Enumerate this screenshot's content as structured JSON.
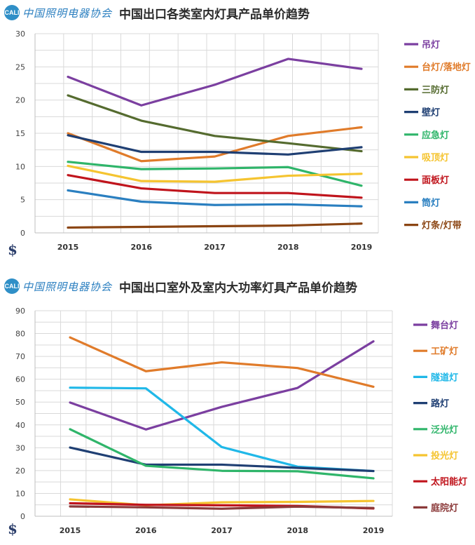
{
  "logo": {
    "badge": "CALI",
    "text": "中国照明电器协会"
  },
  "currency_symbol": "$",
  "chart_data": [
    {
      "type": "line",
      "title": "中国出口各类室内灯具产品单价趋势",
      "x": [
        "2015",
        "2016",
        "2017",
        "2018",
        "2019"
      ],
      "yticks": [
        0,
        5,
        10,
        15,
        20,
        25,
        30
      ],
      "ylim": [
        0,
        30
      ],
      "grid": true,
      "legend_position": "right",
      "series": [
        {
          "name": "吊灯",
          "color": "#7b3fa0",
          "values": [
            23.5,
            19.2,
            22.3,
            26.2,
            24.7
          ]
        },
        {
          "name": "台灯/落地灯",
          "color": "#e07b2a",
          "values": [
            15.0,
            10.8,
            11.5,
            14.6,
            15.9
          ]
        },
        {
          "name": "三防灯",
          "color": "#556b2f",
          "values": [
            20.7,
            16.9,
            14.6,
            13.5,
            12.3
          ]
        },
        {
          "name": "壁灯",
          "color": "#1f3f73",
          "values": [
            14.7,
            12.2,
            12.2,
            11.8,
            12.9
          ]
        },
        {
          "name": "应急灯",
          "color": "#2fb56a",
          "values": [
            10.7,
            9.6,
            9.7,
            9.9,
            7.1
          ]
        },
        {
          "name": "吸顶灯",
          "color": "#f5c430",
          "values": [
            10.1,
            7.8,
            7.7,
            8.6,
            8.9
          ]
        },
        {
          "name": "面板灯",
          "color": "#c0141c",
          "values": [
            8.7,
            6.7,
            6.0,
            6.0,
            5.3
          ]
        },
        {
          "name": "筒灯",
          "color": "#2a7fc0",
          "values": [
            6.4,
            4.7,
            4.2,
            4.3,
            4.0
          ]
        },
        {
          "name": "灯条/灯带",
          "color": "#8b4513",
          "values": [
            0.8,
            0.9,
            1.0,
            1.1,
            1.4
          ]
        }
      ]
    },
    {
      "type": "line",
      "title": "中国出口室外及室内大功率灯具产品单价趋势",
      "x": [
        "2015",
        "2016",
        "2017",
        "2018",
        "2019"
      ],
      "yticks": [
        0,
        10,
        20,
        30,
        40,
        50,
        60,
        70,
        80,
        90
      ],
      "ylim": [
        0,
        90
      ],
      "grid": true,
      "legend_position": "right",
      "series": [
        {
          "name": "舞台灯",
          "color": "#7b3fa0",
          "values": [
            49.8,
            38.0,
            47.9,
            56.2,
            76.6
          ]
        },
        {
          "name": "工矿灯",
          "color": "#e07b2a",
          "values": [
            78.3,
            63.5,
            67.4,
            64.9,
            56.7
          ]
        },
        {
          "name": "隧道灯",
          "color": "#20b8e8",
          "values": [
            56.3,
            56.0,
            30.3,
            21.7,
            19.8
          ]
        },
        {
          "name": "路灯",
          "color": "#1f3f73",
          "values": [
            30.1,
            22.6,
            22.6,
            21.2,
            19.8
          ]
        },
        {
          "name": "泛光灯",
          "color": "#2fb56a",
          "values": [
            38.1,
            22.1,
            19.9,
            19.7,
            16.6
          ]
        },
        {
          "name": "投光灯",
          "color": "#f5c430",
          "values": [
            7.4,
            4.8,
            6.1,
            6.3,
            6.7
          ]
        },
        {
          "name": "太阳能灯",
          "color": "#c0141c",
          "values": [
            5.7,
            5.0,
            4.8,
            4.5,
            3.4
          ]
        },
        {
          "name": "庭院灯",
          "color": "#8b3a3a",
          "values": [
            4.3,
            3.9,
            3.3,
            4.2,
            3.6
          ]
        }
      ]
    }
  ]
}
